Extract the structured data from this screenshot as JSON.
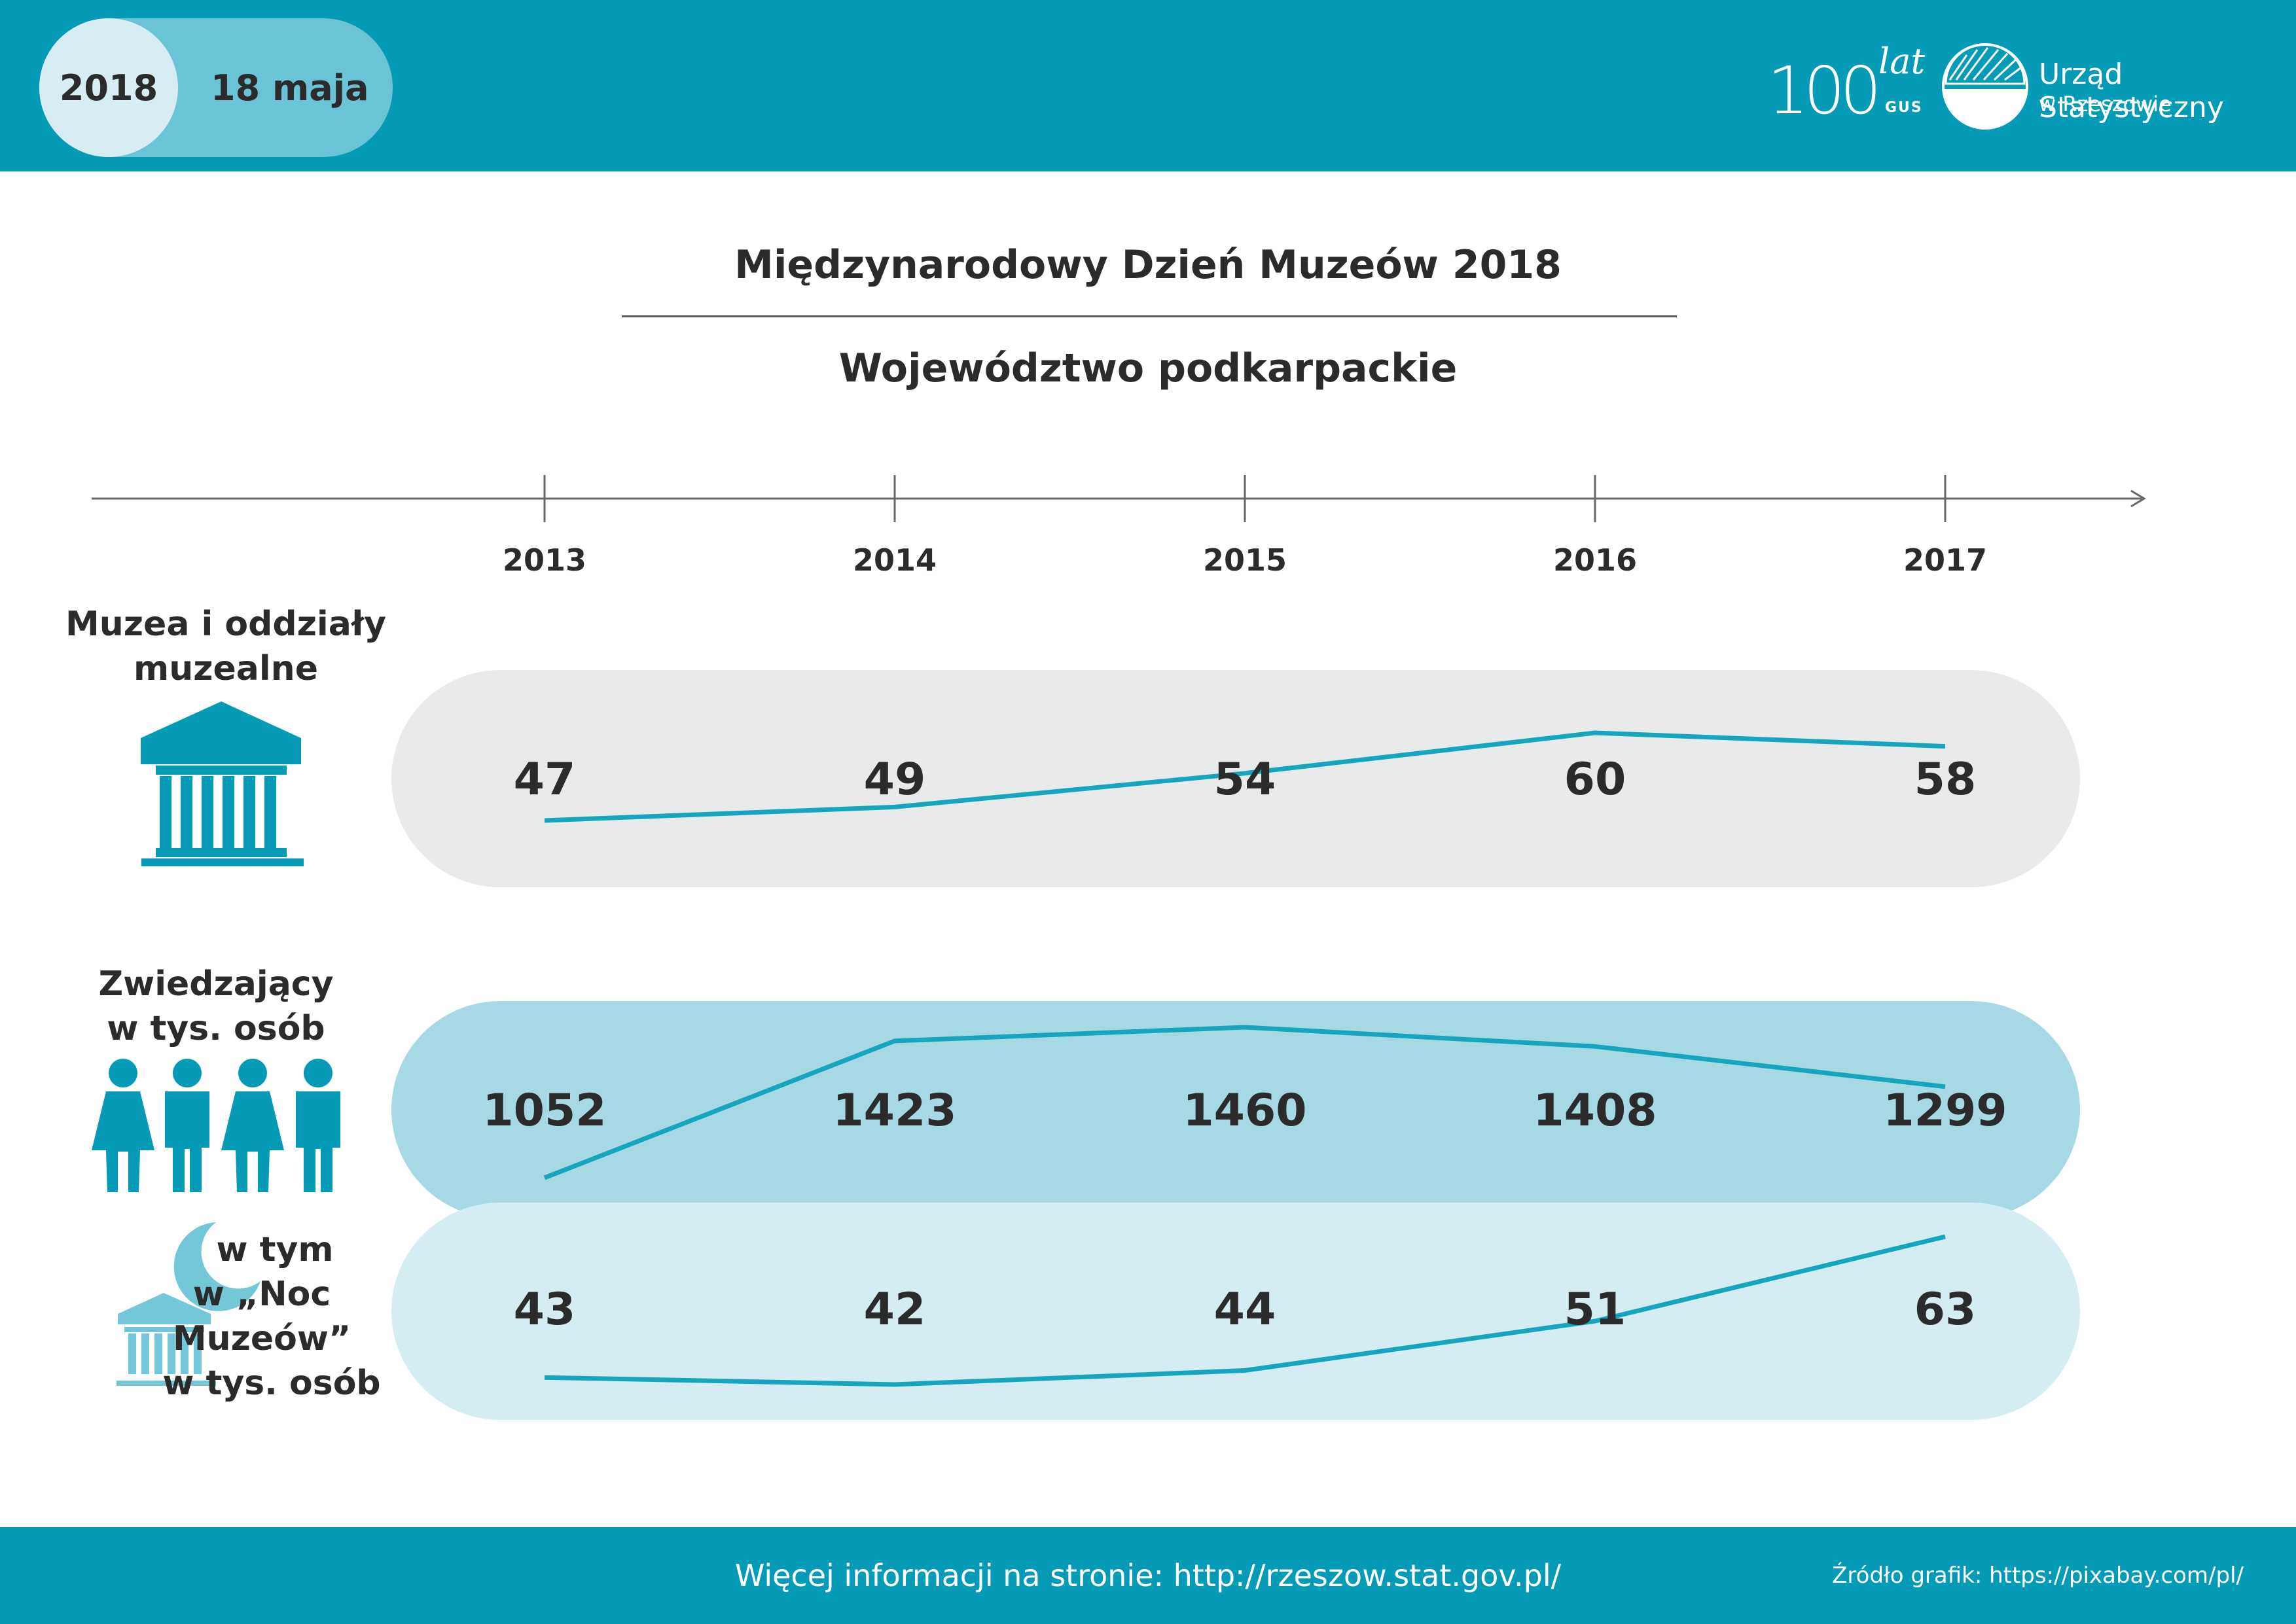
{
  "header": {
    "year": "2018",
    "date": "18 maja",
    "logo_number": "100",
    "logo_lat": "lat",
    "logo_gus": "GUS",
    "org_name": "Urząd Statystyczny",
    "org_city": "w Rzeszowie",
    "color": "#059ab6"
  },
  "title": "Międzynarodowy Dzień Muzeów  2018",
  "subtitle": "Województwo podkarpackie",
  "rows": [
    {
      "label_lines": [
        "Muzea i oddziały",
        "muzealne"
      ],
      "icon": "museum-icon"
    },
    {
      "label_lines": [
        "Zwiedzający",
        "w tys. osób"
      ],
      "icon": "visitors-icon"
    },
    {
      "label_lines": [
        "w tym",
        "w „Noc Muzeów”",
        "w tys. osób"
      ],
      "icon": "museum-night-icon"
    }
  ],
  "chart_data": {
    "type": "line",
    "x": [
      "2013",
      "2014",
      "2015",
      "2016",
      "2017"
    ],
    "series": [
      {
        "values": [
          47,
          49,
          54,
          60,
          58
        ],
        "band_color": "#e9ebea"
      },
      {
        "values": [
          1052,
          1423,
          1460,
          1408,
          1299
        ],
        "band_color": "#a6d9e4"
      },
      {
        "values": [
          43,
          42,
          44,
          51,
          63
        ],
        "band_color": "#d4ecf2"
      }
    ],
    "line_color": "#15a5be"
  },
  "footer": {
    "info": "Więcej informacji na stronie: http://rzeszow.stat.gov.pl/",
    "source": "Źródło grafik: https://pixabay.com/pl/"
  }
}
